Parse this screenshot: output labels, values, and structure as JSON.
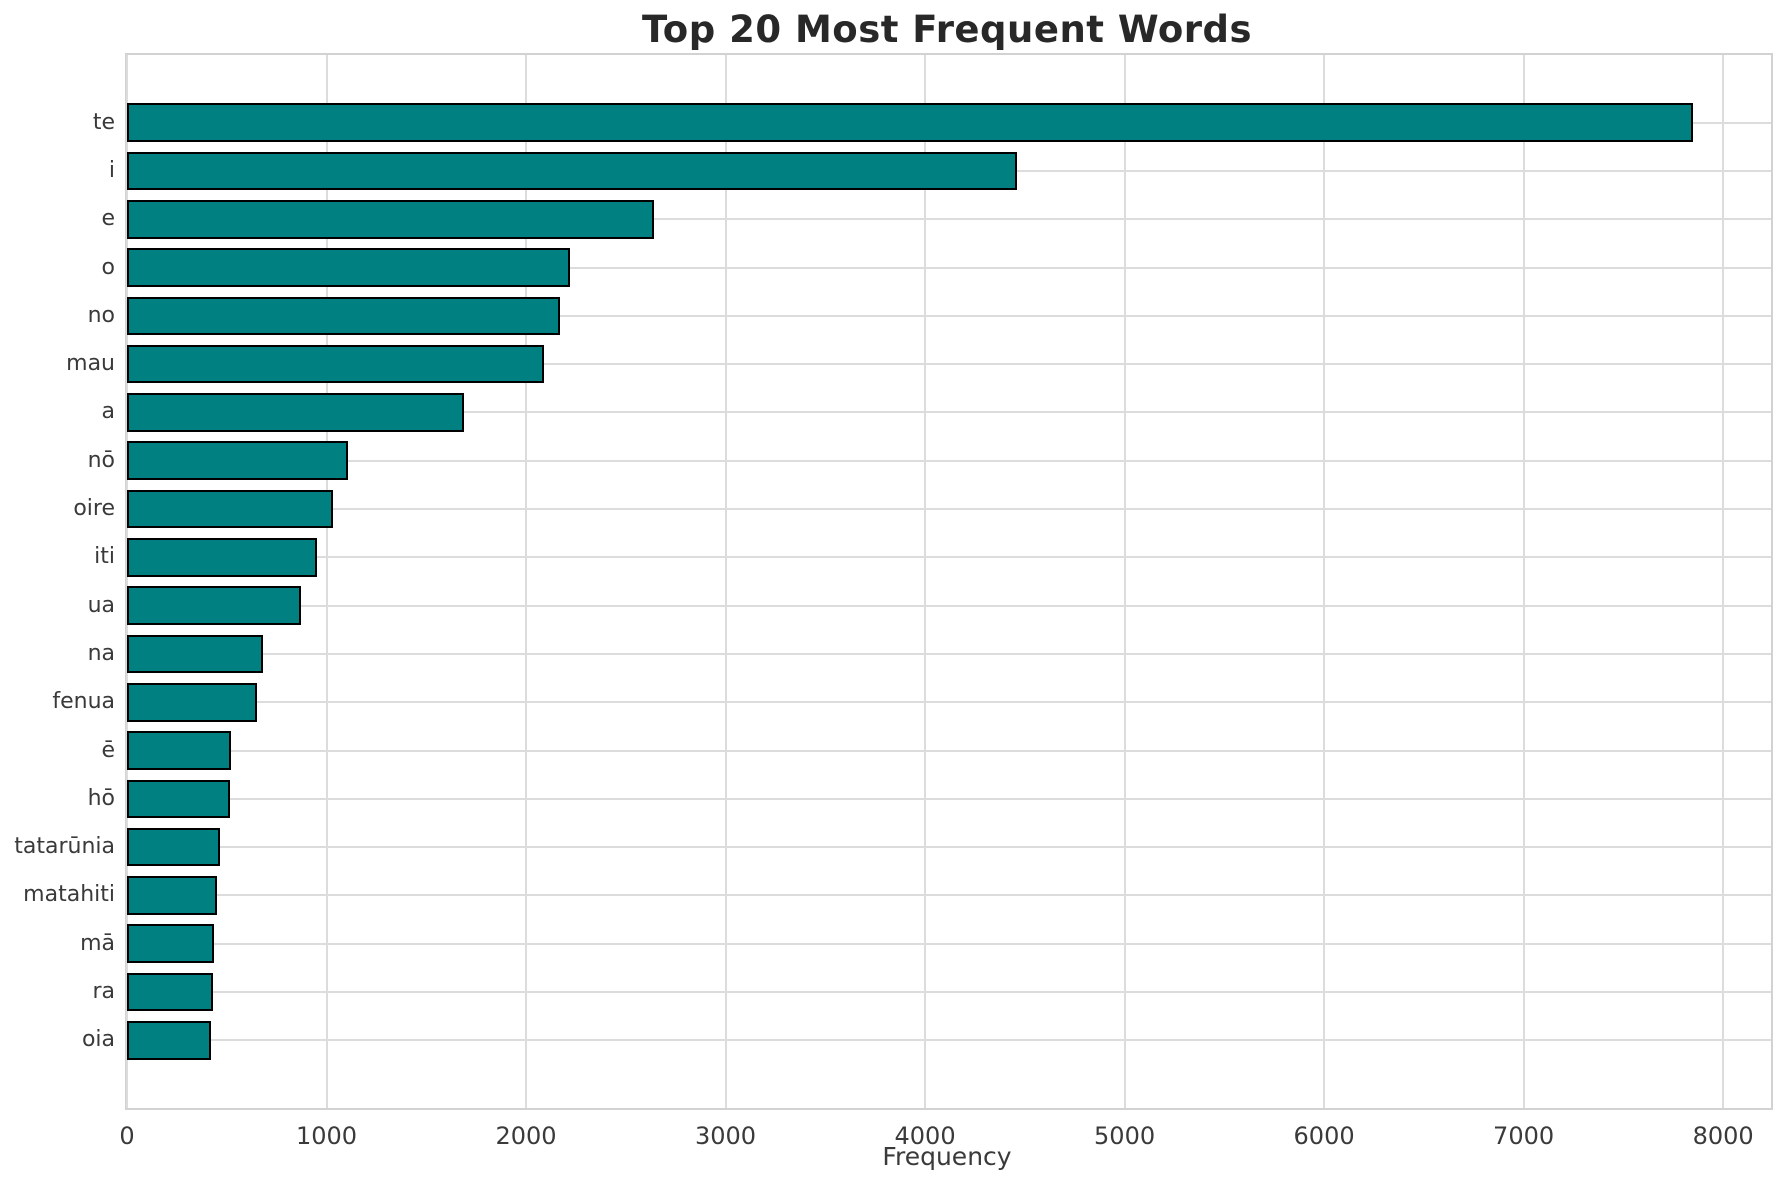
{
  "title": "Top 20 Most Frequent Words",
  "chart_data": {
    "type": "bar",
    "orientation": "horizontal",
    "title": "Top 20 Most Frequent Words",
    "xlabel": "Frequency",
    "ylabel": "",
    "categories": [
      "te",
      "i",
      "e",
      "o",
      "no",
      "mau",
      "a",
      "nō",
      "oire",
      "iti",
      "ua",
      "na",
      "fenua",
      "ē",
      "hō",
      "tatarūnia",
      "matahiti",
      "mā",
      "ra",
      "oia"
    ],
    "values": [
      7850,
      4460,
      2640,
      2220,
      2170,
      2090,
      1690,
      1110,
      1030,
      950,
      870,
      680,
      650,
      520,
      515,
      468,
      453,
      435,
      430,
      420
    ],
    "xticks": [
      0,
      1000,
      2000,
      3000,
      4000,
      5000,
      6000,
      7000,
      8000
    ],
    "xlim": [
      0,
      8240
    ],
    "grid": true,
    "legend": "none",
    "bar_color": "#008080",
    "bar_edge_color": "#000000",
    "grid_color": "#dcdcdc",
    "frame_color": "#d2d2d2",
    "text_color": "#3a3a3a",
    "title_color": "#282828",
    "background": "#ffffff"
  }
}
